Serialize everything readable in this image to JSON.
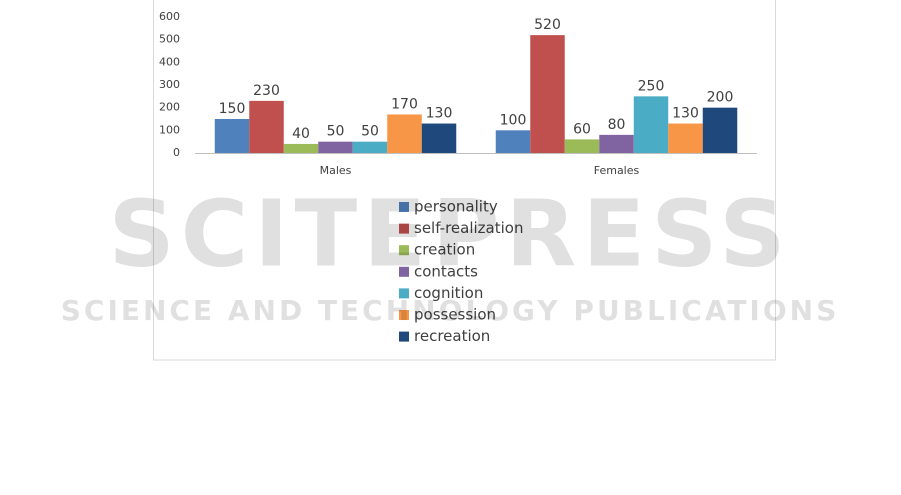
{
  "chart_data": {
    "type": "bar",
    "categories": [
      "Males",
      "Females"
    ],
    "series": [
      {
        "name": "personality",
        "color": "#4f81bd",
        "values": [
          150,
          100
        ]
      },
      {
        "name": "self-realization",
        "color": "#c0504d",
        "values": [
          230,
          520
        ]
      },
      {
        "name": "creation",
        "color": "#9bbb59",
        "values": [
          40,
          60
        ]
      },
      {
        "name": "contacts",
        "color": "#8064a2",
        "values": [
          50,
          80
        ]
      },
      {
        "name": "cognition",
        "color": "#4bacc6",
        "values": [
          50,
          250
        ]
      },
      {
        "name": "possession",
        "color": "#f79646",
        "values": [
          170,
          130
        ]
      },
      {
        "name": "recreation",
        "color": "#1f497d",
        "values": [
          130,
          200
        ]
      }
    ],
    "ylim": [
      0,
      600
    ],
    "yticks": [
      0,
      100,
      200,
      300,
      400,
      500,
      600
    ],
    "grid": false,
    "legend": "bottom",
    "annotations": [
      "SCITEPRESS",
      "SCIENCE AND TECHNOLOGY PUBLICATIONS"
    ]
  }
}
